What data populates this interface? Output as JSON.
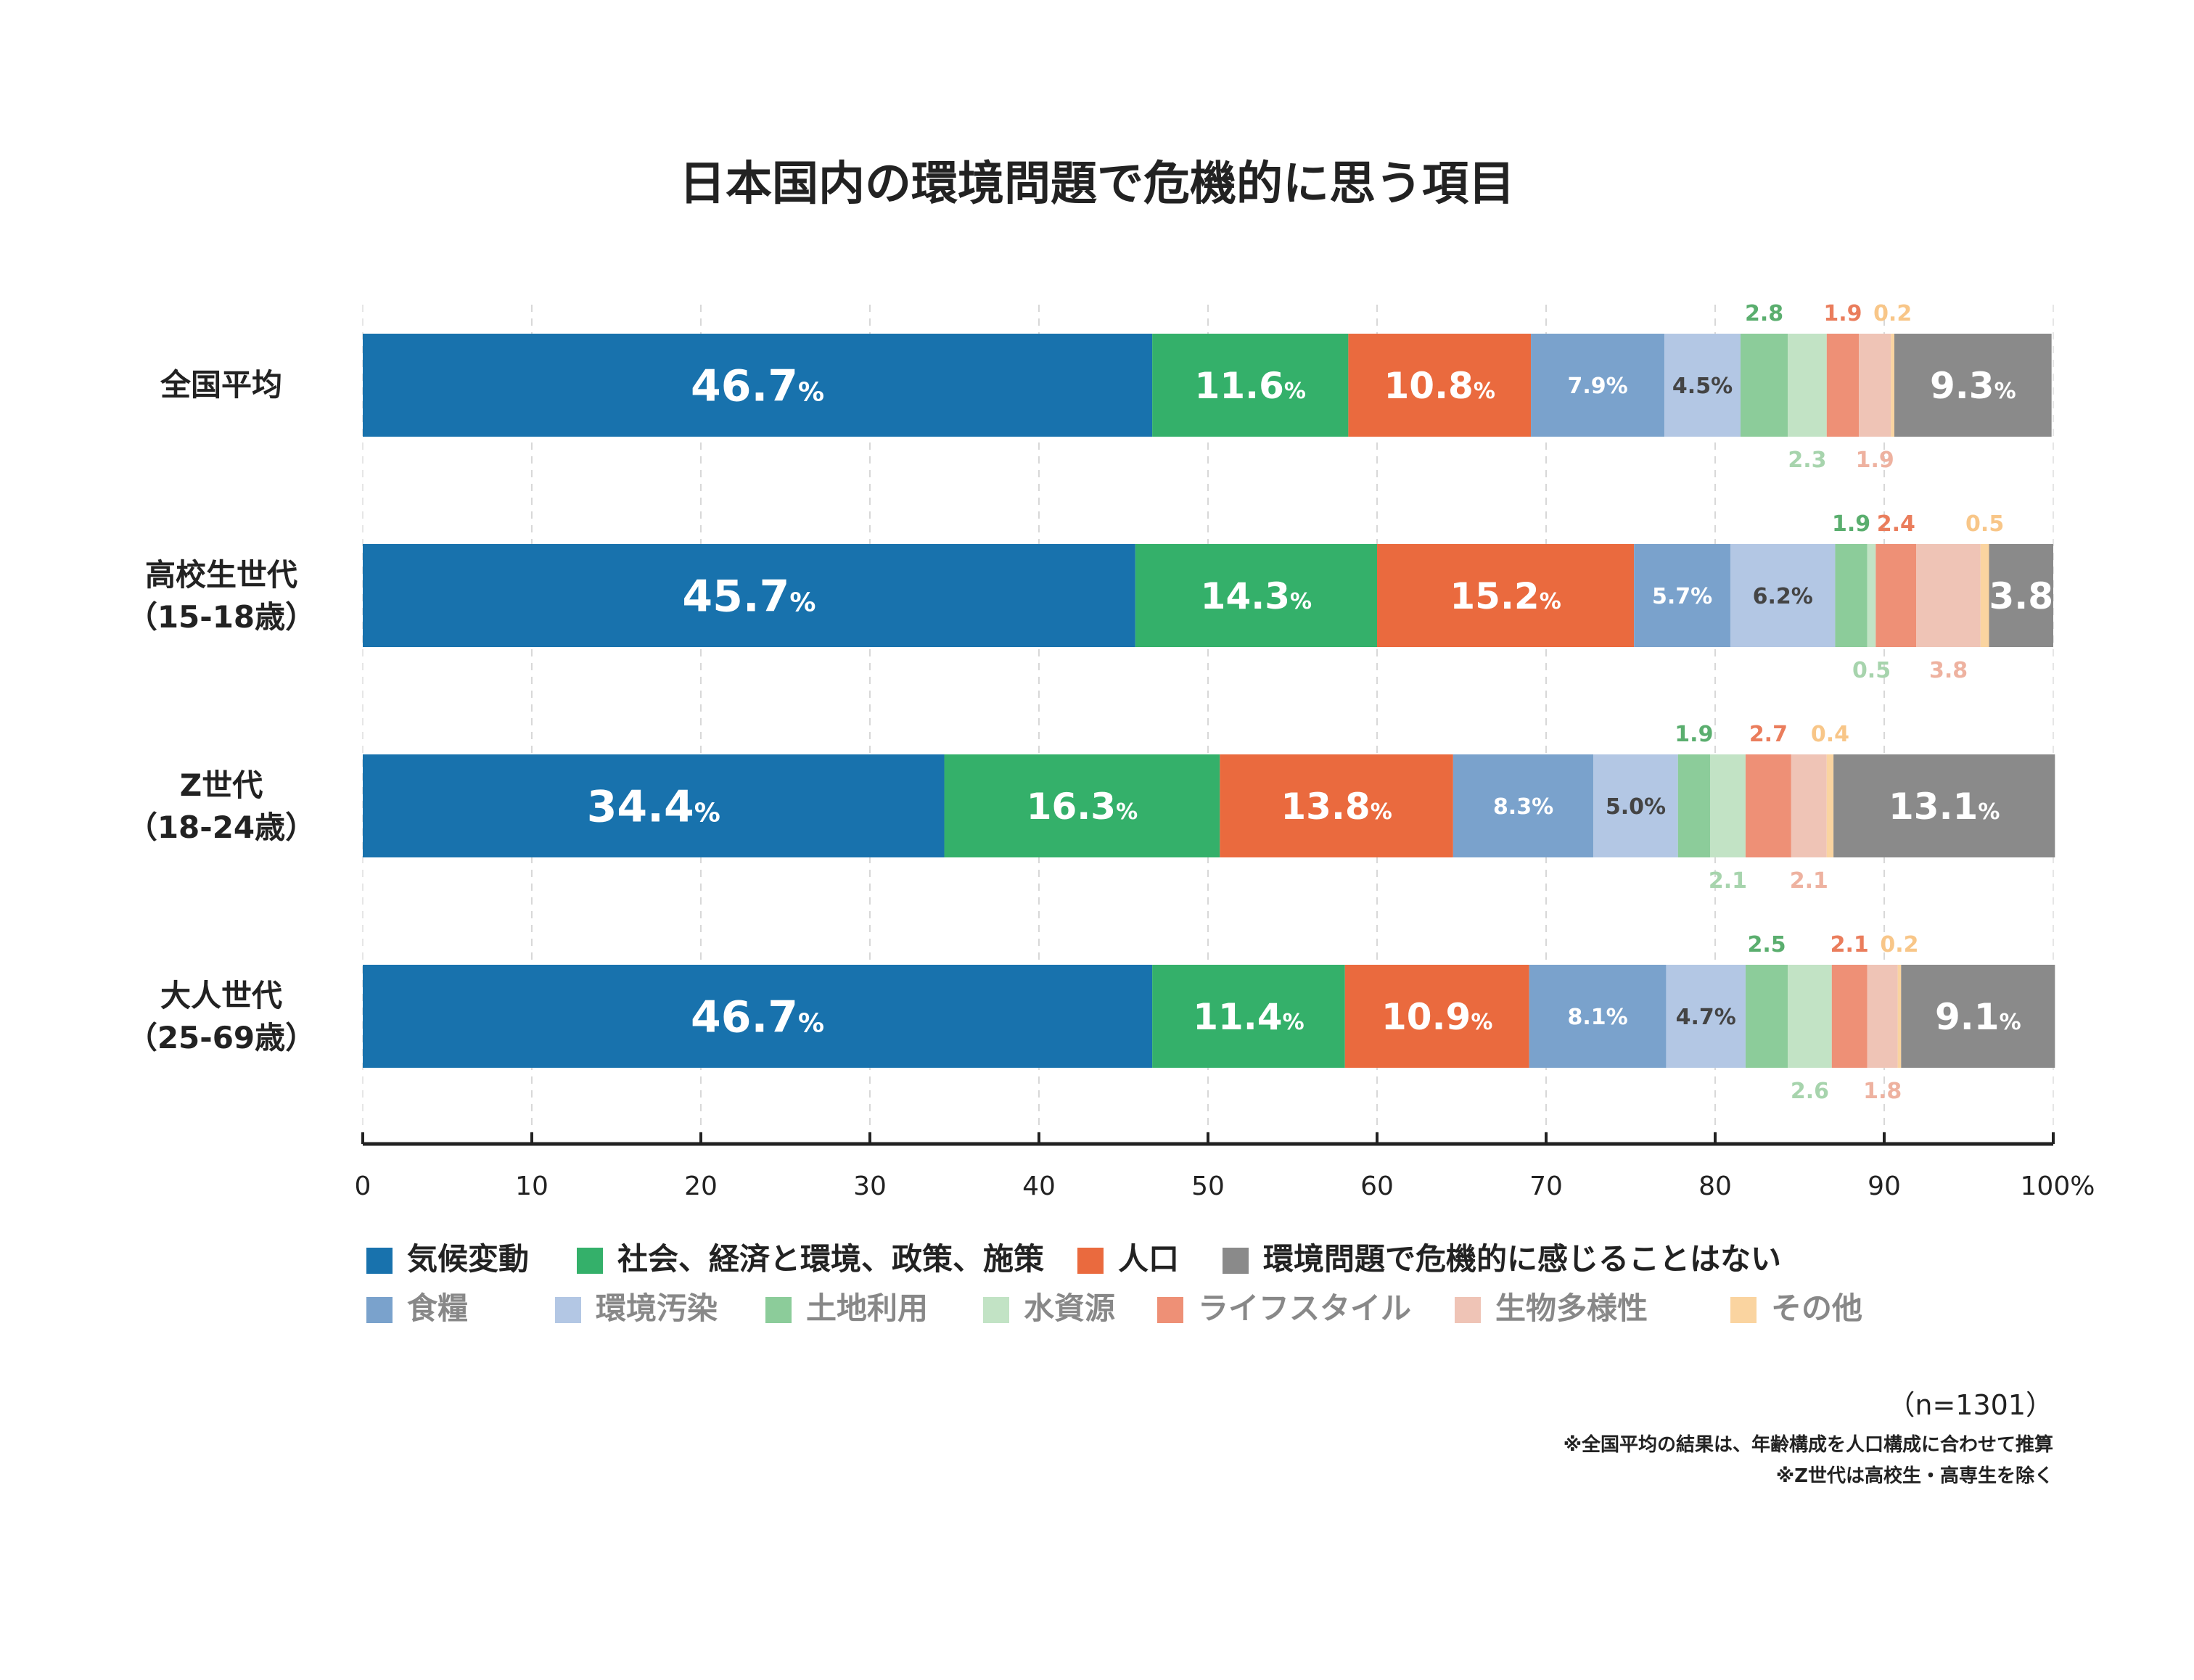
{
  "colors": {
    "kiko": "#1872ad",
    "shakai": "#34b06a",
    "jinko": "#ea6a3e",
    "nai": "#8a8a8a",
    "shokuryo": "#7aa2cc",
    "osen": "#b3c7e4",
    "tochi": "#8ccc9a",
    "mizu": "#c2e3c5",
    "lifestyle": "#ee9076",
    "seibutsu": "#efc4b6",
    "sonota": "#fad4a0"
  },
  "chart_data": {
    "type": "bar",
    "orientation": "horizontal",
    "stacked": true,
    "title": "日本国内の環境問題で危機的に思う項目",
    "categories": [
      [
        "全国平均"
      ],
      [
        "高校生世代",
        "（15-18歳）"
      ],
      [
        "Z世代",
        "（18-24歳）"
      ],
      [
        "大人世代",
        "（25-69歳）"
      ]
    ],
    "xlim": [
      0,
      100
    ],
    "xticks": [
      "0",
      "10",
      "20",
      "30",
      "40",
      "50",
      "60",
      "70",
      "80",
      "90",
      "100%"
    ],
    "grid": true,
    "legend_position": "bottom",
    "series": [
      {
        "name": "気候変動",
        "color_key": "kiko",
        "legend_row": 1,
        "values": [
          46.7,
          45.7,
          34.4,
          46.7
        ],
        "labels": [
          "46.7",
          "45.7",
          "34.4",
          "46.7"
        ],
        "unit": "%",
        "label_pos": "in",
        "label_style": "big"
      },
      {
        "name": "社会、経済と環境、政策、施策",
        "color_key": "shakai",
        "legend_row": 1,
        "values": [
          11.6,
          14.3,
          16.3,
          11.4
        ],
        "labels": [
          "11.6",
          "14.3",
          "16.3",
          "11.4"
        ],
        "unit": "%",
        "label_pos": "in",
        "label_style": "mid"
      },
      {
        "name": "人口",
        "color_key": "jinko",
        "legend_row": 1,
        "values": [
          10.8,
          15.2,
          13.8,
          10.9
        ],
        "labels": [
          "10.8",
          "15.2",
          "13.8",
          "10.9"
        ],
        "unit": "%",
        "label_pos": "in",
        "label_style": "mid"
      },
      {
        "name": "食糧",
        "color_key": "shokuryo",
        "legend_row": 2,
        "values": [
          7.9,
          5.7,
          8.3,
          8.1
        ],
        "labels": [
          "7.9%",
          "5.7%",
          "8.3%",
          "8.1%"
        ],
        "label_pos": "in",
        "label_style": "small-white"
      },
      {
        "name": "環境汚染",
        "color_key": "osen",
        "legend_row": 2,
        "values": [
          4.5,
          6.2,
          5.0,
          4.7
        ],
        "labels": [
          "4.5%",
          "6.2%",
          "5.0%",
          "4.7%"
        ],
        "label_pos": "in",
        "label_style": "small-dark"
      },
      {
        "name": "土地利用",
        "color_key": "tochi",
        "legend_row": 2,
        "values": [
          2.8,
          1.9,
          1.9,
          2.5
        ],
        "labels": [
          "2.8",
          "1.9",
          "1.9",
          "2.5"
        ],
        "label_pos": "above",
        "label_color": "#5aae6e"
      },
      {
        "name": "水資源",
        "color_key": "mizu",
        "legend_row": 2,
        "values": [
          2.3,
          0.5,
          2.1,
          2.6
        ],
        "labels": [
          "2.3",
          "0.5",
          "2.1",
          "2.6"
        ],
        "label_pos": "below",
        "label_color": "#a7d4ad"
      },
      {
        "name": "ライフスタイル",
        "color_key": "lifestyle",
        "legend_row": 2,
        "values": [
          1.9,
          2.4,
          2.7,
          2.1
        ],
        "labels": [
          "1.9",
          "2.4",
          "2.7",
          "2.1"
        ],
        "label_pos": "above",
        "label_color": "#ea7d5c"
      },
      {
        "name": "生物多様性",
        "color_key": "seibutsu",
        "legend_row": 2,
        "values": [
          1.9,
          3.8,
          2.1,
          1.8
        ],
        "labels": [
          "1.9",
          "3.8",
          "2.1",
          "1.8"
        ],
        "label_pos": "below",
        "label_color": "#eeb2a0"
      },
      {
        "name": "その他",
        "color_key": "sonota",
        "legend_row": 2,
        "values": [
          0.2,
          0.5,
          0.4,
          0.2
        ],
        "labels": [
          "0.2",
          "0.5",
          "0.4",
          "0.2"
        ],
        "label_pos": "above",
        "label_color": "#f8c688"
      },
      {
        "name": "環境問題で危機的に感じることはない",
        "color_key": "nai",
        "legend_row": 1,
        "values": [
          9.3,
          3.8,
          13.1,
          9.1
        ],
        "labels": [
          "9.3",
          "3.8",
          "13.1",
          "9.1"
        ],
        "units": [
          "%",
          "",
          "%",
          "%"
        ],
        "label_pos": "in",
        "label_style": "mid-white"
      }
    ],
    "legend_row1_order": [
      "気候変動",
      "社会、経済と環境、政策、施策",
      "人口",
      "環境問題で危機的に感じることはない"
    ],
    "legend_row2_order": [
      "食糧",
      "環境汚染",
      "土地利用",
      "水資源",
      "ライフスタイル",
      "生物多様性",
      "その他"
    ]
  },
  "footer": {
    "n": "（n=1301）",
    "note1": "※全国平均の結果は、年齢構成を人口構成に合わせて推算",
    "note2": "※Z世代は高校生・高専生を除く"
  }
}
